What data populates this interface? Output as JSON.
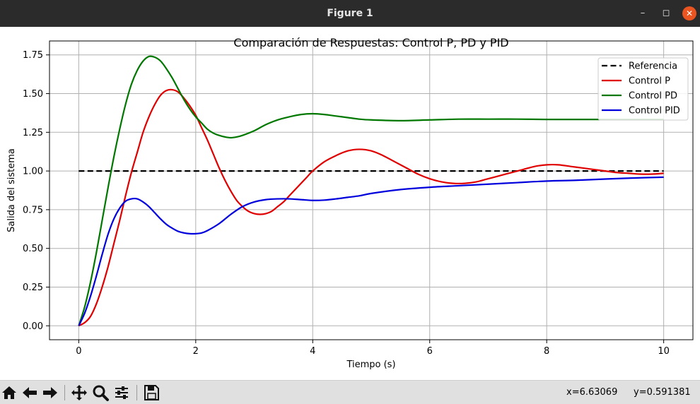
{
  "window": {
    "title": "Figure 1"
  },
  "colors": {
    "referencia": "#000000",
    "p": "#e00000",
    "pd": "#007800",
    "pid": "#0000dd",
    "grid": "#b0b0b0"
  },
  "toolbar": {
    "icons": [
      "home-icon",
      "back-arrow-icon",
      "forward-arrow-icon",
      "pan-icon",
      "zoom-icon",
      "subplots-icon",
      "save-icon"
    ],
    "coord_x": "x=6.63069",
    "coord_y": "y=0.591381"
  },
  "chart_data": {
    "type": "line",
    "title": "Comparación de Respuestas: Control P, PD y PID",
    "xlabel": "Tiempo (s)",
    "ylabel": "Salida del sistema",
    "xlim": [
      -0.5,
      10.5
    ],
    "ylim": [
      -0.09,
      1.84
    ],
    "xticks": [
      0,
      2,
      4,
      6,
      8,
      10
    ],
    "xtick_labels": [
      "0",
      "2",
      "4",
      "6",
      "8",
      "10"
    ],
    "yticks": [
      0,
      0.25,
      0.5,
      0.75,
      1.0,
      1.25,
      1.5,
      1.75
    ],
    "ytick_labels": [
      "0.00",
      "0.25",
      "0.50",
      "0.75",
      "1.00",
      "1.25",
      "1.50",
      "1.75"
    ],
    "grid": true,
    "legend_position": "top-right",
    "series": [
      {
        "name": "Referencia",
        "style": "dashed",
        "x": [
          0,
          10
        ],
        "y": [
          1.0,
          1.0
        ]
      },
      {
        "name": "Control P",
        "style": "solid",
        "x": [
          0,
          0.1,
          0.2,
          0.3,
          0.4,
          0.5,
          0.6,
          0.7,
          0.8,
          0.9,
          1.0,
          1.1,
          1.2,
          1.3,
          1.4,
          1.5,
          1.6,
          1.7,
          1.8,
          1.9,
          2.0,
          2.1,
          2.2,
          2.3,
          2.4,
          2.5,
          2.6,
          2.7,
          2.8,
          2.9,
          3.0,
          3.1,
          3.2,
          3.3,
          3.4,
          3.5,
          3.6,
          3.7,
          3.8,
          3.9,
          4.0,
          4.2,
          4.4,
          4.6,
          4.8,
          5.0,
          5.2,
          5.4,
          5.6,
          5.8,
          6.0,
          6.2,
          6.4,
          6.6,
          6.8,
          7.0,
          7.2,
          7.4,
          7.6,
          7.8,
          8.0,
          8.2,
          8.4,
          8.6,
          8.8,
          9.0,
          9.2,
          9.4,
          9.6,
          9.8,
          10.0
        ],
        "y": [
          0,
          0.02,
          0.06,
          0.14,
          0.25,
          0.38,
          0.53,
          0.68,
          0.84,
          0.99,
          1.12,
          1.25,
          1.35,
          1.43,
          1.49,
          1.52,
          1.525,
          1.51,
          1.47,
          1.42,
          1.36,
          1.28,
          1.2,
          1.11,
          1.02,
          0.94,
          0.87,
          0.81,
          0.77,
          0.74,
          0.725,
          0.72,
          0.725,
          0.74,
          0.77,
          0.8,
          0.84,
          0.88,
          0.92,
          0.96,
          1.0,
          1.06,
          1.1,
          1.13,
          1.14,
          1.13,
          1.1,
          1.06,
          1.02,
          0.98,
          0.95,
          0.93,
          0.92,
          0.92,
          0.93,
          0.95,
          0.97,
          0.99,
          1.01,
          1.03,
          1.04,
          1.04,
          1.03,
          1.02,
          1.01,
          1.0,
          0.99,
          0.985,
          0.98,
          0.98,
          0.985
        ]
      },
      {
        "name": "Control PD",
        "style": "solid",
        "x": [
          0,
          0.1,
          0.2,
          0.3,
          0.4,
          0.5,
          0.6,
          0.7,
          0.8,
          0.9,
          1.0,
          1.1,
          1.2,
          1.3,
          1.4,
          1.5,
          1.6,
          1.7,
          1.8,
          1.9,
          2.0,
          2.1,
          2.2,
          2.3,
          2.4,
          2.5,
          2.6,
          2.7,
          2.8,
          3.0,
          3.2,
          3.4,
          3.6,
          3.8,
          4.0,
          4.2,
          4.4,
          4.6,
          4.8,
          5.0,
          5.5,
          6.0,
          6.5,
          7.0,
          7.5,
          8.0,
          8.5,
          9.0,
          9.5,
          10.0
        ],
        "y": [
          0,
          0.12,
          0.28,
          0.47,
          0.68,
          0.89,
          1.09,
          1.27,
          1.43,
          1.56,
          1.65,
          1.71,
          1.74,
          1.735,
          1.71,
          1.66,
          1.6,
          1.53,
          1.46,
          1.4,
          1.35,
          1.31,
          1.27,
          1.245,
          1.23,
          1.22,
          1.215,
          1.22,
          1.23,
          1.26,
          1.3,
          1.33,
          1.35,
          1.365,
          1.37,
          1.365,
          1.355,
          1.345,
          1.335,
          1.33,
          1.325,
          1.33,
          1.335,
          1.335,
          1.335,
          1.333,
          1.333,
          1.333,
          1.333,
          1.333
        ]
      },
      {
        "name": "Control PID",
        "style": "solid",
        "x": [
          0,
          0.1,
          0.2,
          0.3,
          0.4,
          0.5,
          0.6,
          0.7,
          0.8,
          0.9,
          1.0,
          1.1,
          1.2,
          1.3,
          1.4,
          1.5,
          1.6,
          1.7,
          1.8,
          1.9,
          2.0,
          2.1,
          2.2,
          2.4,
          2.6,
          2.8,
          3.0,
          3.2,
          3.4,
          3.6,
          3.8,
          4.0,
          4.2,
          4.4,
          4.6,
          4.8,
          5.0,
          5.5,
          6.0,
          6.5,
          7.0,
          7.5,
          8.0,
          8.5,
          9.0,
          9.5,
          10.0
        ],
        "y": [
          0,
          0.08,
          0.19,
          0.32,
          0.46,
          0.59,
          0.69,
          0.76,
          0.805,
          0.82,
          0.82,
          0.8,
          0.77,
          0.73,
          0.69,
          0.655,
          0.63,
          0.61,
          0.6,
          0.595,
          0.595,
          0.6,
          0.615,
          0.66,
          0.72,
          0.77,
          0.8,
          0.815,
          0.82,
          0.82,
          0.815,
          0.81,
          0.812,
          0.82,
          0.83,
          0.84,
          0.855,
          0.88,
          0.895,
          0.905,
          0.915,
          0.925,
          0.935,
          0.94,
          0.948,
          0.955,
          0.96
        ]
      }
    ]
  }
}
